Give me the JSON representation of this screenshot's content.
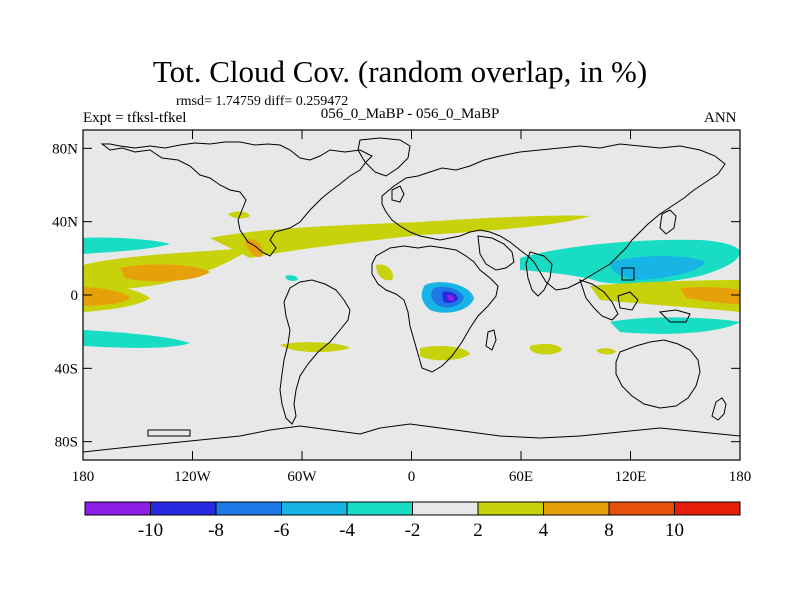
{
  "title": "Tot. Cloud Cov. (random overlap, in %)",
  "stats": "rmsd= 1.74759 diff= 0.259472",
  "left_label": "Expt = tfksl-tfkel",
  "center_label": "056_0_MaBP - 056_0_MaBP",
  "right_label": "ANN",
  "map": {
    "lon_range": [
      -180,
      180
    ],
    "lat_range": [
      -90,
      90
    ],
    "lon_ticks": [
      {
        "value": -180,
        "label": "180"
      },
      {
        "value": -120,
        "label": "120W"
      },
      {
        "value": -60,
        "label": "60W"
      },
      {
        "value": 0,
        "label": "0"
      },
      {
        "value": 60,
        "label": "60E"
      },
      {
        "value": 120,
        "label": "120E"
      },
      {
        "value": 180,
        "label": "180"
      }
    ],
    "lat_ticks": [
      {
        "value": 80,
        "label": "80N"
      },
      {
        "value": 40,
        "label": "40N"
      },
      {
        "value": 0,
        "label": "0"
      },
      {
        "value": -40,
        "label": "40S"
      },
      {
        "value": -80,
        "label": "80S"
      }
    ],
    "background_color": "#e8e8e8"
  },
  "colorbar": {
    "colors": [
      "#8d1ee8",
      "#2828e0",
      "#1e78e6",
      "#19b4e6",
      "#19dcc4",
      "#e8e8e8",
      "#c8d20a",
      "#e6a00a",
      "#e6500a",
      "#e61e0a"
    ],
    "labels": [
      "-10",
      "-8",
      "-6",
      "-4",
      "-2",
      "2",
      "4",
      "8",
      "10"
    ]
  }
}
